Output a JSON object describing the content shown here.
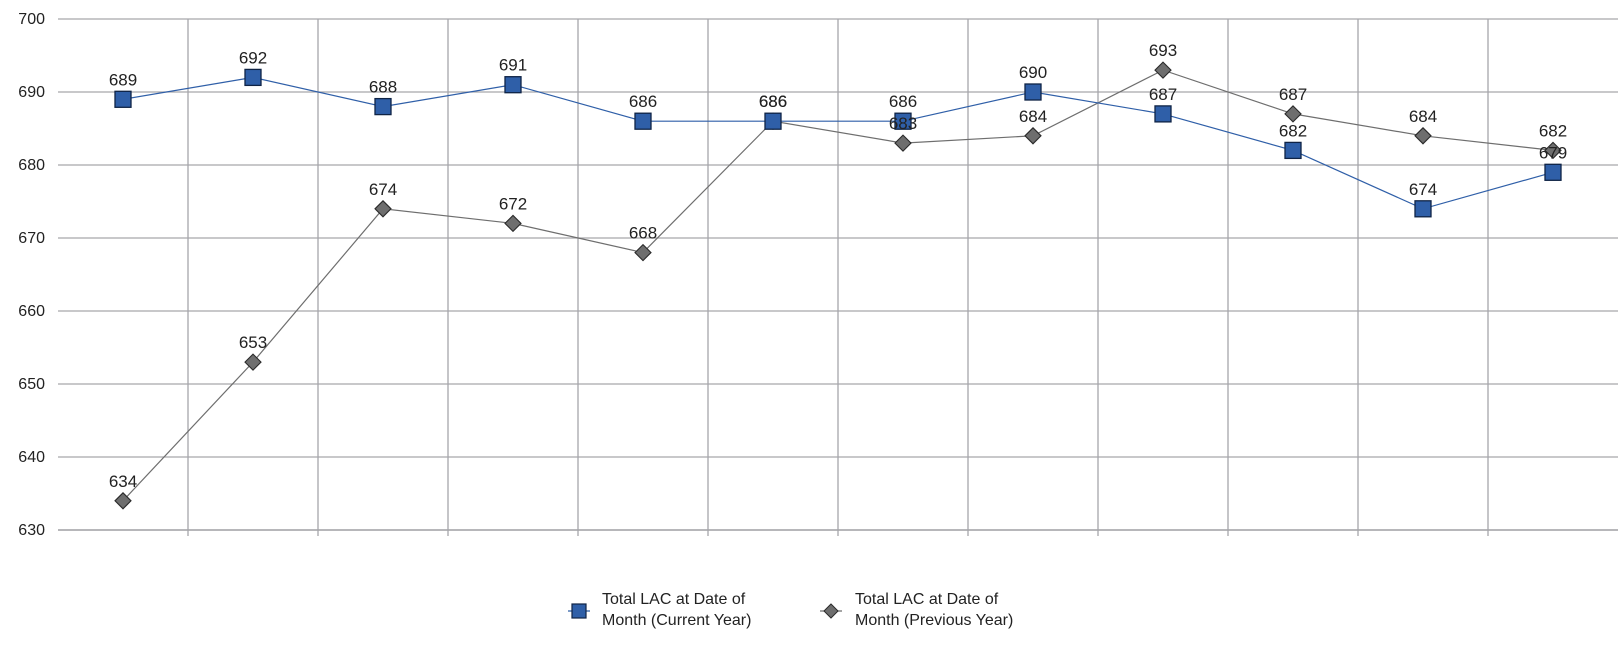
{
  "chart_data": {
    "type": "line",
    "title": "",
    "xlabel": "",
    "ylabel": "",
    "categories": [
      "",
      "",
      "",
      "",
      "",
      "",
      "",
      "",
      "",
      "",
      "",
      ""
    ],
    "ylim": [
      630,
      700
    ],
    "yticks": [
      630,
      640,
      650,
      660,
      670,
      680,
      690,
      700
    ],
    "grid": true,
    "legend_position": "bottom",
    "series": [
      {
        "name": "Total LAC at Date of Month (Current Year)",
        "legend_lines": [
          "Total LAC at Date of",
          "Month (Current Year)"
        ],
        "marker": "square",
        "color": "#2f5fa8",
        "values": [
          689,
          692,
          688,
          691,
          686,
          686,
          686,
          690,
          687,
          682,
          674,
          679
        ]
      },
      {
        "name": "Total LAC at Date of Month (Previous Year)",
        "legend_lines": [
          "Total LAC at Date of",
          "Month (Previous Year)"
        ],
        "marker": "diamond",
        "color": "#6e6e6e",
        "values": [
          634,
          653,
          674,
          672,
          668,
          686,
          683,
          684,
          693,
          687,
          684,
          682
        ]
      }
    ]
  }
}
